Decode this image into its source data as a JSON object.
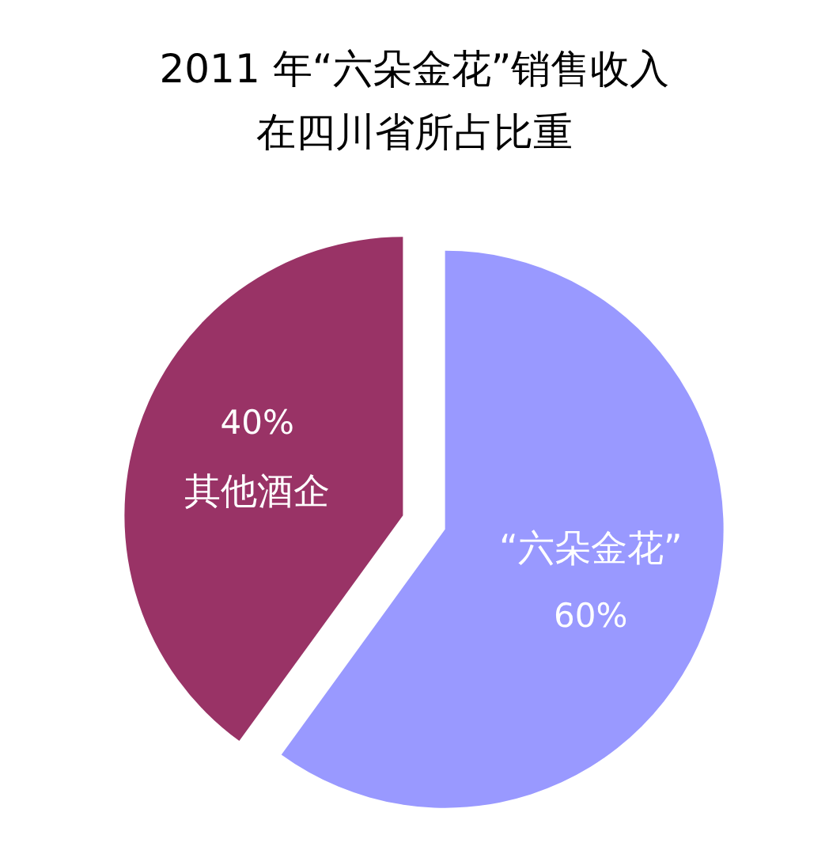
{
  "chart_data": {
    "type": "pie",
    "title": "2011 年“六朵金花”销售收入",
    "subtitle": "在四川省所占比重",
    "categories": [
      "“六朵金花”",
      "其他酒企"
    ],
    "values": [
      60,
      40
    ],
    "value_labels": [
      "60%",
      "40%"
    ],
    "colors": [
      "#9999ff",
      "#993366"
    ]
  }
}
